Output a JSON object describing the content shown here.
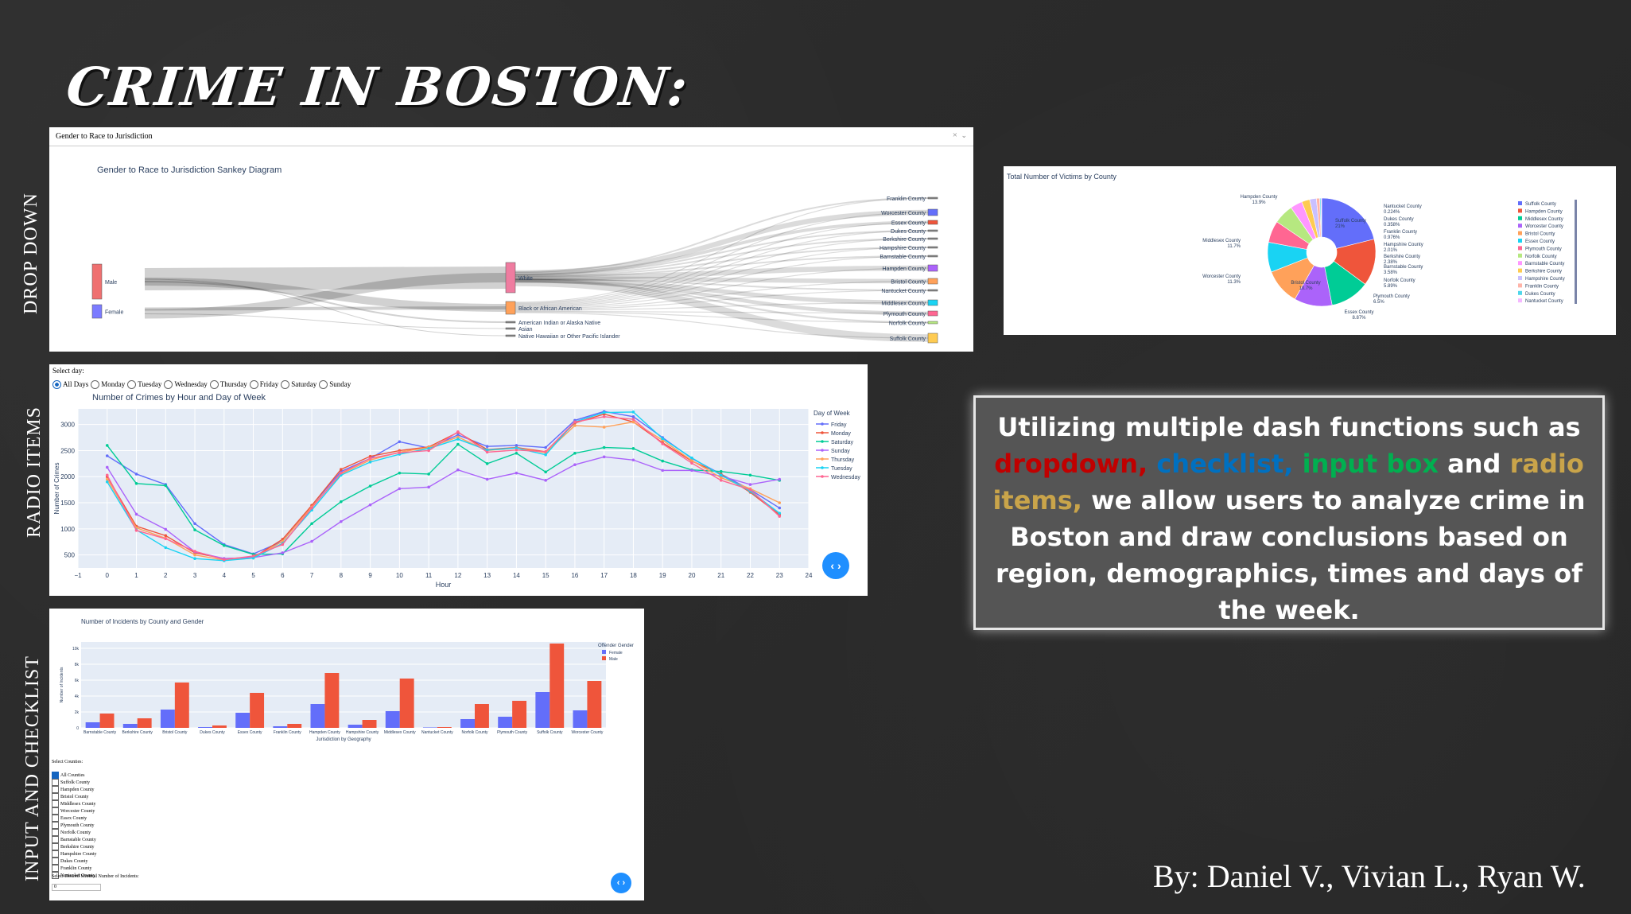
{
  "title": "CRIME IN BOSTON:",
  "side_labels": {
    "dropdown": "DROP DOWN",
    "radio": "RADIO ITEMS",
    "checklist": "INPUT AND CHECKLIST"
  },
  "sankey": {
    "dropdown_value": "Gender to Race to Jurisdiction",
    "dropdown_clear": "×",
    "title": "Gender to Race to Jurisdiction Sankey Diagram",
    "genders": [
      "Male",
      "Female"
    ],
    "races": [
      "White",
      "Black or African American",
      "American Indian or Alaska Native",
      "Asian",
      "Native Hawaiian or Other Pacific Islander"
    ],
    "counties": [
      "Franklin County",
      "Worcester County",
      "Essex County",
      "Dukes County",
      "Berkshire County",
      "Hampshire County",
      "Barnstable County",
      "Hampden County",
      "Bristol County",
      "Nantucket County",
      "Middlesex County",
      "Plymouth County",
      "Norfolk County",
      "Suffolk County"
    ],
    "county_colors": [
      "#888",
      "#636efa",
      "#ef553b",
      "#888",
      "#888",
      "#888",
      "#888",
      "#ab63fa",
      "#ffa15a",
      "#888",
      "#19d3f3",
      "#ff6692",
      "#b6e880",
      "#fecb52"
    ]
  },
  "pie": {
    "title": "Total Number of Victims by County",
    "slices": [
      {
        "label": "Suffolk County",
        "value": 21,
        "color": "#636efa"
      },
      {
        "label": "Hampden County",
        "value": 13.9,
        "color": "#ef553b"
      },
      {
        "label": "Middlesex County",
        "value": 11.7,
        "color": "#00cc96"
      },
      {
        "label": "Worcester County",
        "value": 11.3,
        "color": "#ab63fa"
      },
      {
        "label": "Bristol County",
        "value": 10.7,
        "color": "#ffa15a"
      },
      {
        "label": "Essex County",
        "value": 8.87,
        "color": "#19d3f3"
      },
      {
        "label": "Plymouth County",
        "value": 6.5,
        "color": "#ff6692"
      },
      {
        "label": "Norfolk County",
        "value": 5.89,
        "color": "#b6e880"
      },
      {
        "label": "Barnstable County",
        "value": 3.58,
        "color": "#ff97ff"
      },
      {
        "label": "Berkshire County",
        "value": 2.38,
        "color": "#fecb52"
      },
      {
        "label": "Hampshire County",
        "value": 2.01,
        "color": "#c9c0ff"
      },
      {
        "label": "Franklin County",
        "value": 0.976,
        "color": "#ffb4a8"
      },
      {
        "label": "Dukes County",
        "value": 0.358,
        "color": "#4fd6ea"
      },
      {
        "label": "Nantucket County",
        "value": 0.224,
        "color": "#f4b8ff"
      }
    ],
    "slice_labels": [
      {
        "name": "Suffolk County",
        "pct": "21%"
      },
      {
        "name": "Hampden County",
        "pct": "13.9%"
      },
      {
        "name": "Middlesex County",
        "pct": "11.7%"
      },
      {
        "name": "Worcester County",
        "pct": "11.3%"
      },
      {
        "name": "Bristol County",
        "pct": "10.7%"
      },
      {
        "name": "Essex County",
        "pct": "8.87%"
      },
      {
        "name": "Plymouth County",
        "pct": "6.5%"
      },
      {
        "name": "Norfolk County",
        "pct": "5.89%"
      },
      {
        "name": "Barnstable County",
        "pct": "3.58%"
      },
      {
        "name": "Berkshire County",
        "pct": "2.38%"
      },
      {
        "name": "Hampshire County",
        "pct": "2.01%"
      },
      {
        "name": "Franklin County",
        "pct": "0.976%"
      },
      {
        "name": "Dukes County",
        "pct": "0.358%"
      },
      {
        "name": "Nantucket County",
        "pct": "0.224%"
      }
    ]
  },
  "radio": {
    "prompt": "Select day:",
    "options": [
      "All Days",
      "Monday",
      "Tuesday",
      "Wednesday",
      "Thursday",
      "Friday",
      "Saturday",
      "Sunday"
    ],
    "selected": "All Days",
    "title": "Number of Crimes by Hour and Day of Week",
    "xlabel": "Hour",
    "ylabel": "Number of Crimes",
    "legend_title": "Day of Week",
    "xticks": [
      "−1",
      "0",
      "1",
      "2",
      "3",
      "4",
      "5",
      "6",
      "7",
      "8",
      "9",
      "10",
      "11",
      "12",
      "13",
      "14",
      "15",
      "16",
      "17",
      "18",
      "19",
      "20",
      "21",
      "22",
      "23",
      "24"
    ],
    "yticks": [
      "500",
      "1000",
      "1500",
      "2000",
      "2500",
      "3000"
    ]
  },
  "bars": {
    "title": "Number of Incidents by County and Gender",
    "xlabel": "Jurisdiction by Geography",
    "ylabel": "Number of Incidents",
    "legend_title": "Offender Gender",
    "yticks": [
      "0",
      "2k",
      "4k",
      "6k",
      "8k",
      "10k"
    ],
    "checklist_prompt": "Select Counties:",
    "checklist": [
      "All Counties",
      "Suffolk County",
      "Hampden County",
      "Bristol County",
      "Middlesex County",
      "Worcester County",
      "Essex County",
      "Plymouth County",
      "Norfolk County",
      "Barnstable County",
      "Berkshire County",
      "Hampshire County",
      "Dukes County",
      "Franklin County",
      "Nantucket County"
    ],
    "input_prompt": "Select Desired Minimal Number of Incidents:",
    "input_value": "0"
  },
  "callout": {
    "lead": "Utilizing multiple dash functions such as",
    "dropdown": "dropdown,",
    "checklist": "checklist,",
    "inputbox": "input box",
    "and": "and",
    "radio": "radio items,",
    "rest": "we allow users to analyze crime in Boston and draw conclusions based on region, demographics, times and days of the week."
  },
  "credits": "By: Daniel V., Vivian L., Ryan W.",
  "nav_button": "‹ ›",
  "colors": {
    "dropdown": "#c00000",
    "checklist": "#0070c0",
    "inputbox": "#00b050",
    "radio": "#c9a44a",
    "female": "#636efa",
    "male": "#ef553b"
  },
  "chart_data": [
    {
      "type": "line",
      "title": "Number of Crimes by Hour and Day of Week",
      "xlabel": "Hour",
      "ylabel": "Number of Crimes",
      "x": [
        0,
        1,
        2,
        3,
        4,
        5,
        6,
        7,
        8,
        9,
        10,
        11,
        12,
        13,
        14,
        15,
        16,
        17,
        18,
        19,
        20,
        21,
        22,
        23
      ],
      "xlim": [
        -1,
        24
      ],
      "ylim": [
        250,
        3300
      ],
      "series": [
        {
          "name": "Friday",
          "color": "#636efa",
          "values": [
            2400,
            2050,
            1850,
            1100,
            700,
            520,
            760,
            1450,
            2100,
            2350,
            2670,
            2550,
            2800,
            2580,
            2600,
            2560,
            3080,
            3250,
            3150,
            2750,
            2350,
            2050,
            1750,
            1400
          ]
        },
        {
          "name": "Monday",
          "color": "#ef553b",
          "values": [
            2000,
            1050,
            870,
            540,
            430,
            450,
            800,
            1450,
            2140,
            2390,
            2500,
            2570,
            2850,
            2520,
            2560,
            2480,
            3030,
            3200,
            3050,
            2650,
            2300,
            2050,
            1700,
            1270
          ]
        },
        {
          "name": "Saturday",
          "color": "#00cc96",
          "values": [
            2600,
            1870,
            1830,
            980,
            680,
            510,
            520,
            1100,
            1520,
            1820,
            2070,
            2050,
            2620,
            2250,
            2450,
            2090,
            2450,
            2560,
            2540,
            2300,
            2130,
            2100,
            2030,
            1930
          ]
        },
        {
          "name": "Sunday",
          "color": "#ab63fa",
          "values": [
            2180,
            1280,
            990,
            560,
            430,
            450,
            540,
            760,
            1140,
            1460,
            1770,
            1800,
            2130,
            1950,
            2070,
            1930,
            2230,
            2380,
            2320,
            2120,
            2120,
            2010,
            1850,
            1950
          ]
        },
        {
          "name": "Thursday",
          "color": "#ffa15a",
          "values": [
            1950,
            1020,
            820,
            500,
            400,
            440,
            760,
            1420,
            2050,
            2320,
            2470,
            2560,
            2760,
            2500,
            2550,
            2460,
            2980,
            2950,
            3050,
            2700,
            2310,
            1980,
            1770,
            1500
          ]
        },
        {
          "name": "Tuesday",
          "color": "#19d3f3",
          "values": [
            1900,
            980,
            640,
            430,
            390,
            440,
            720,
            1360,
            2030,
            2280,
            2430,
            2540,
            2720,
            2510,
            2550,
            2420,
            3050,
            3230,
            3240,
            2730,
            2360,
            2030,
            1720,
            1300
          ]
        },
        {
          "name": "Wednesday",
          "color": "#ff6692",
          "values": [
            2030,
            970,
            810,
            570,
            410,
            480,
            700,
            1400,
            2070,
            2350,
            2460,
            2500,
            2860,
            2470,
            2510,
            2480,
            3050,
            3150,
            3100,
            2630,
            2260,
            1930,
            1750,
            1240
          ]
        }
      ]
    },
    {
      "type": "bar",
      "title": "Number of Incidents by County and Gender",
      "xlabel": "Jurisdiction by Geography",
      "ylabel": "Number of Incidents",
      "categories": [
        "Barnstable County",
        "Berkshire County",
        "Bristol County",
        "Dukes County",
        "Essex County",
        "Franklin County",
        "Hampden County",
        "Hampshire County",
        "Middlesex County",
        "Nantucket County",
        "Norfolk County",
        "Plymouth County",
        "Suffolk County",
        "Worcester County"
      ],
      "ylim": [
        0,
        10800
      ],
      "series": [
        {
          "name": "Female",
          "color": "#636efa",
          "values": [
            700,
            500,
            2300,
            100,
            1900,
            200,
            3000,
            400,
            2100,
            50,
            1100,
            1400,
            4500,
            2200
          ]
        },
        {
          "name": "Male",
          "color": "#ef553b",
          "values": [
            1800,
            1200,
            5700,
            300,
            4400,
            500,
            6900,
            1000,
            6200,
            100,
            3000,
            3400,
            10600,
            5900
          ]
        }
      ]
    },
    {
      "type": "pie",
      "title": "Total Number of Victims by County",
      "categories": [
        "Suffolk County",
        "Hampden County",
        "Middlesex County",
        "Worcester County",
        "Bristol County",
        "Essex County",
        "Plymouth County",
        "Norfolk County",
        "Barnstable County",
        "Berkshire County",
        "Hampshire County",
        "Franklin County",
        "Dukes County",
        "Nantucket County"
      ],
      "values": [
        21,
        13.9,
        11.7,
        11.3,
        10.7,
        8.87,
        6.5,
        5.89,
        3.58,
        2.38,
        2.01,
        0.976,
        0.358,
        0.224
      ]
    }
  ]
}
